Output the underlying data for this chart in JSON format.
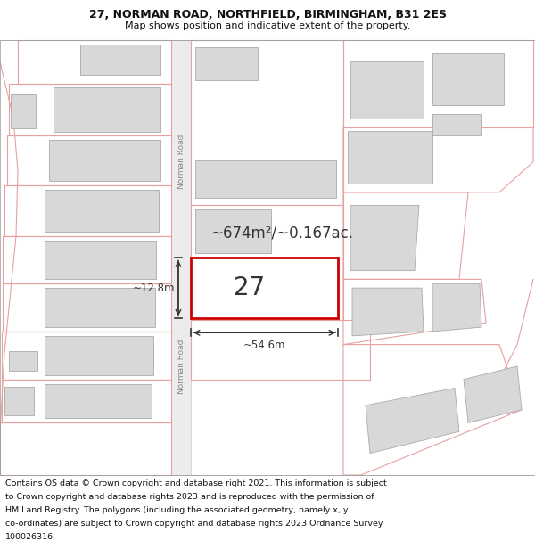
{
  "title_line1": "27, NORMAN ROAD, NORTHFIELD, BIRMINGHAM, B31 2ES",
  "title_line2": "Map shows position and indicative extent of the property.",
  "footer_lines": [
    "Contains OS data © Crown copyright and database right 2021. This information is subject",
    "to Crown copyright and database rights 2023 and is reproduced with the permission of",
    "HM Land Registry. The polygons (including the associated geometry, namely x, y",
    "co-ordinates) are subject to Crown copyright and database rights 2023 Ordnance Survey",
    "100026316."
  ],
  "map_bg": "#ffffff",
  "title_bg": "#ffffff",
  "footer_bg": "#ffffff",
  "parcel_line": "#e8a0a0",
  "building_fill": "#d8d8d8",
  "building_line": "#aaaaaa",
  "property_fill": "#ffffff",
  "property_border": "#cc0000",
  "road_fill": "#e0e0e0",
  "road_line": "#cccccc",
  "area_text": "~674m²/~0.167ac.",
  "number_text": "27",
  "width_text": "~54.6m",
  "height_text": "~12.8m",
  "road_label": "Norman Road",
  "road_label2": "Norman Road",
  "measure_color": "#333333"
}
